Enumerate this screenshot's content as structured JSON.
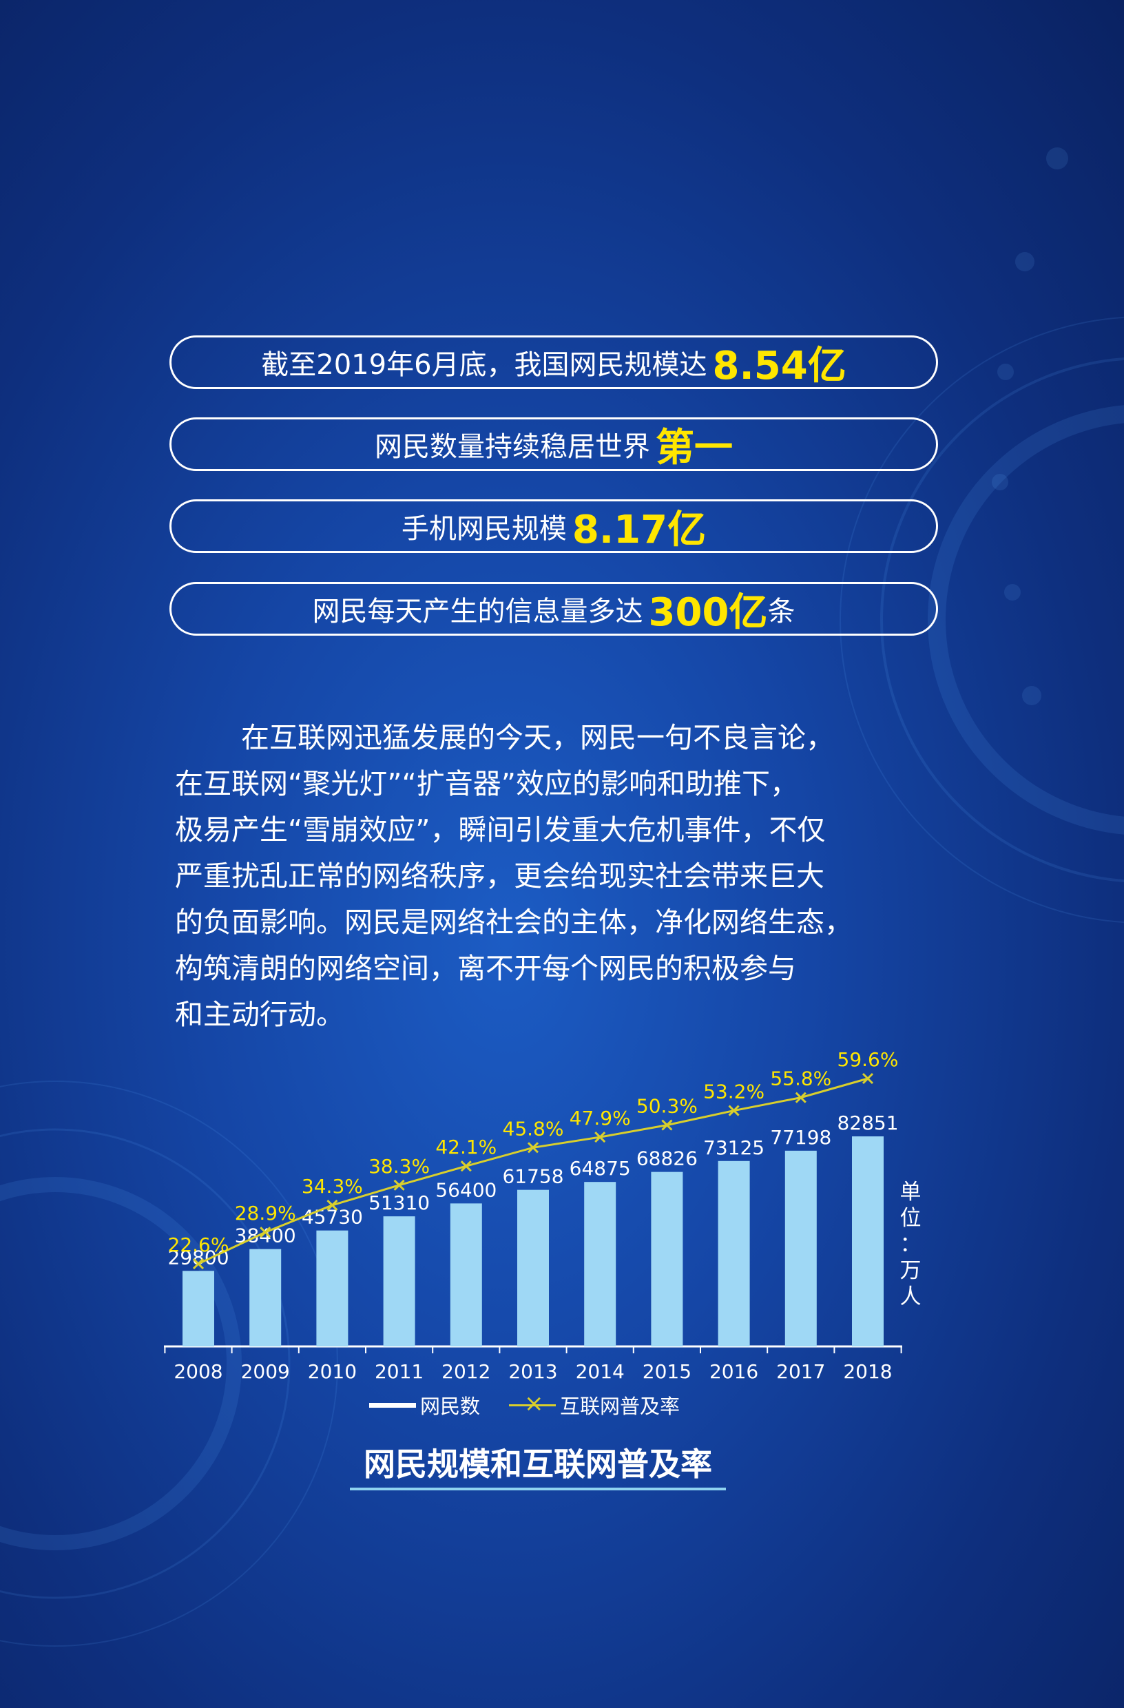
{
  "highlights": [
    {
      "text": "截至2019年6月底，我国网民规模达",
      "value": "8.54亿",
      "suffix": ""
    },
    {
      "text": "网民数量持续稳居世界",
      "value": "第一",
      "suffix": ""
    },
    {
      "text": "手机网民规模",
      "value": "8.17亿",
      "suffix": ""
    },
    {
      "text": "网民每天产生的信息量多达",
      "value": "300亿",
      "suffix": "条"
    }
  ],
  "paragraph_lines": [
    "在互联网迅猛发展的今天，网民一句不良言论，",
    "在互联网“聚光灯”“扩音器”效应的影响和助推下，",
    "极易产生“雪崩效应”，瞬间引发重大危机事件，不仅",
    "严重扰乱正常的网络秩序，更会给现实社会带来巨大",
    "的负面影响。网民是网络社会的主体，净化网络生态，",
    "构筑清朗的网络空间，离不开每个网民的积极参与",
    "和主动行动。"
  ],
  "chart_data": {
    "type": "bar",
    "title": "网民规模和互联网普及率",
    "unit_label": "单位：万人",
    "unit_chars": [
      "单",
      "位",
      "：",
      "万",
      "人"
    ],
    "categories": [
      "2008",
      "2009",
      "2010",
      "2011",
      "2012",
      "2013",
      "2014",
      "2015",
      "2016",
      "2017",
      "2018"
    ],
    "series": [
      {
        "name": "网民数",
        "type": "bar",
        "values": [
          29800,
          38400,
          45730,
          51310,
          56400,
          61758,
          64875,
          68826,
          73125,
          77198,
          82851
        ],
        "color": "#9fd8f5"
      },
      {
        "name": "互联网普及率",
        "type": "line",
        "values": [
          22.6,
          28.9,
          34.3,
          38.3,
          42.1,
          45.8,
          47.9,
          50.3,
          53.2,
          55.8,
          59.6
        ],
        "value_labels": [
          "22.6%",
          "28.9%",
          "34.3%",
          "38.3%",
          "42.1%",
          "45.8%",
          "47.9%",
          "50.3%",
          "53.2%",
          "55.8%",
          "59.6%"
        ],
        "color": "#d9cf2c"
      }
    ],
    "legend": [
      "网民数",
      "互联网普及率"
    ],
    "legend_position": "bottom",
    "grid": false
  },
  "colors": {
    "highlight": "#ffe600",
    "bar": "#9fd8f5",
    "line": "#d9cf2c",
    "title_underline": "#8fd3f0"
  }
}
